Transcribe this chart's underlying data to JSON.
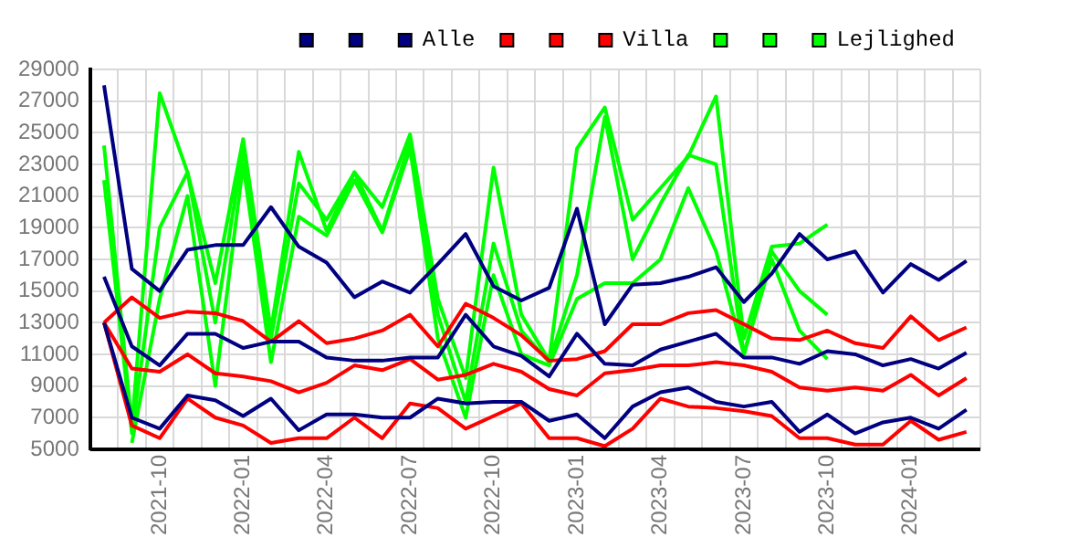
{
  "chart_data": {
    "type": "line",
    "categories": [
      null,
      null,
      "2021-10",
      null,
      null,
      "2022-01",
      null,
      null,
      "2022-04",
      null,
      null,
      "2022-07",
      null,
      null,
      "2022-10",
      null,
      null,
      "2023-01",
      null,
      null,
      "2023-04",
      null,
      null,
      "2023-07",
      null,
      null,
      "2023-10",
      null,
      null,
      "2024-01",
      null,
      null
    ],
    "ylim": [
      5000,
      29000
    ],
    "yticks": [
      5000,
      7000,
      9000,
      11000,
      13000,
      15000,
      17000,
      19000,
      21000,
      23000,
      25000,
      27000,
      29000
    ],
    "grid": true,
    "legend": "top right",
    "marker": "none",
    "series": [
      {
        "color": "#000080",
        "values": [
          28000,
          16400,
          15000,
          17600,
          17900,
          17900,
          20300,
          17800,
          16800,
          14600,
          15600,
          14900,
          16700,
          18600,
          15300,
          14400,
          15200,
          20200,
          12900,
          15400,
          15500,
          15900,
          16500,
          14300,
          16100,
          18600,
          17000,
          17500,
          14900,
          16700,
          15700,
          16900
        ]
      },
      {
        "color": "#000080",
        "values": [
          15900,
          11500,
          10300,
          12300,
          12300,
          11400,
          11800,
          11800,
          10800,
          10600,
          10600,
          10800,
          10800,
          13500,
          11500,
          10900,
          9600,
          12300,
          10400,
          10300,
          11300,
          11800,
          12300,
          10800,
          10800,
          10400,
          11200,
          11000,
          10300,
          10700,
          10100,
          11100
        ]
      },
      {
        "name": "Alle",
        "color": "#000080",
        "values": [
          13000,
          7000,
          6300,
          8400,
          8100,
          7100,
          8200,
          6200,
          7200,
          7200,
          7000,
          7000,
          8200,
          7900,
          8000,
          8000,
          6800,
          7200,
          5700,
          7700,
          8600,
          8900,
          8000,
          7700,
          8000,
          6100,
          7200,
          6000,
          6700,
          7000,
          6300,
          7500
        ]
      },
      {
        "color": "#ff0000",
        "values": [
          13000,
          14600,
          13300,
          13700,
          13600,
          13100,
          11800,
          13100,
          11700,
          12000,
          12500,
          13500,
          11500,
          14200,
          13300,
          12200,
          10600,
          10700,
          11200,
          12900,
          12900,
          13600,
          13800,
          12900,
          12000,
          11900,
          12500,
          11700,
          11400,
          13400,
          11900,
          12700
        ]
      },
      {
        "color": "#ff0000",
        "values": [
          13000,
          10100,
          9900,
          11000,
          9800,
          9600,
          9300,
          8600,
          9200,
          10300,
          10000,
          10700,
          9400,
          9700,
          10400,
          9900,
          8800,
          8400,
          9800,
          10000,
          10300,
          10300,
          10500,
          10300,
          9900,
          8900,
          8700,
          8900,
          8700,
          9700,
          8400,
          9500
        ]
      },
      {
        "name": "Villa",
        "color": "#ff0000",
        "values": [
          13000,
          6500,
          5700,
          8200,
          7000,
          6500,
          5400,
          5700,
          5700,
          7000,
          5700,
          7900,
          7600,
          6300,
          7100,
          7900,
          5700,
          5700,
          5200,
          6300,
          8200,
          7700,
          7600,
          7400,
          7100,
          5700,
          5700,
          5300,
          5300,
          6800,
          5600,
          6100
        ]
      },
      {
        "color": "#00ff00",
        "values": [
          24200,
          6500,
          27500,
          22500,
          15500,
          24600,
          12500,
          23800,
          18800,
          22500,
          20300,
          24900,
          14500,
          9500,
          22800,
          13500,
          10600,
          24000,
          26600,
          19500,
          21500,
          23500,
          27300,
          12000,
          17800,
          18000,
          19200,
          null,
          null,
          null,
          null,
          null
        ]
      },
      {
        "color": "#00ff00",
        "values": [
          22000,
          6000,
          19000,
          22500,
          13000,
          24000,
          12000,
          21800,
          19500,
          22500,
          18800,
          24500,
          13500,
          8000,
          18000,
          12500,
          10500,
          16000,
          26000,
          17000,
          20500,
          23600,
          23000,
          11000,
          17500,
          15000,
          13500,
          null,
          null,
          null,
          null,
          null
        ]
      },
      {
        "name": "Lejlighed",
        "color": "#00ff00",
        "values": [
          null,
          5400,
          14500,
          21000,
          9000,
          23000,
          10500,
          19700,
          18500,
          22000,
          18700,
          24000,
          12000,
          7000,
          16000,
          11000,
          10300,
          14500,
          15500,
          15500,
          17000,
          21500,
          17500,
          11000,
          17000,
          12500,
          10700,
          null,
          null,
          null,
          null,
          null
        ]
      }
    ]
  }
}
